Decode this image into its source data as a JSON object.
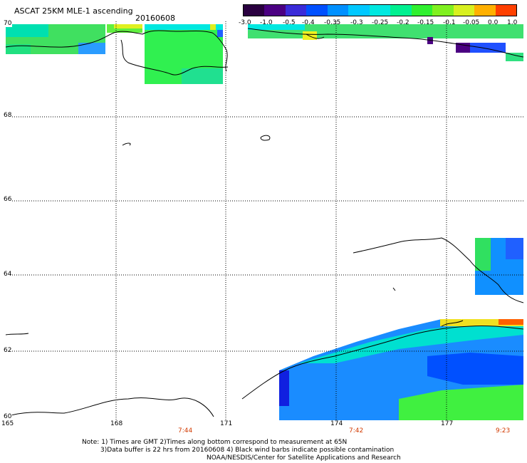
{
  "header": {
    "title": "ASCAT 25KM MLE-1 ascending",
    "date": "20160608"
  },
  "colorbar": {
    "ticks": [
      "-3.0",
      "-1.0",
      "-0.5",
      "-0.4",
      "-0.35",
      "-0.3",
      "-0.25",
      "-0.2",
      "-0.15",
      "-0.1",
      "-0.05",
      "0.0",
      "1.0"
    ],
    "colors": [
      "#2a0040",
      "#4b0082",
      "#3a2bd8",
      "#0050ff",
      "#0090ff",
      "#00c8ff",
      "#00e8e0",
      "#00f090",
      "#30f030",
      "#80f020",
      "#d8f020",
      "#ffb000",
      "#ff4000"
    ]
  },
  "map": {
    "lat_labels": [
      "70",
      "68",
      "66",
      "64",
      "62",
      "60"
    ],
    "lon_labels": [
      "165",
      "168",
      "171",
      "174",
      "177"
    ],
    "time_labels": [
      "7:44",
      "7:42",
      "9:23"
    ],
    "grid_line_style": "dotted"
  },
  "notes": {
    "line1": "Note: 1) Times are GMT 2)Times along bottom correspond to measurement at 65N",
    "line2": "3)Data buffer is 22 hrs from 20160608 4) Black wind barbs indicate possible contamination",
    "line3": "NOAA/NESDIS/Center for Satellite Applications and Research"
  }
}
